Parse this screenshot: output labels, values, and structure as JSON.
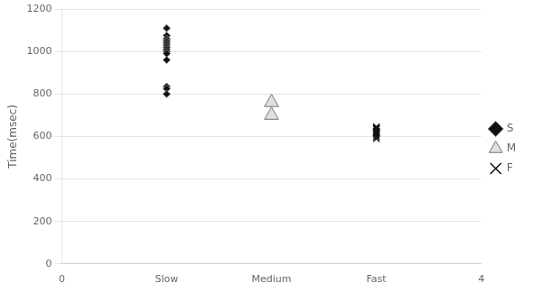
{
  "chart_data": {
    "type": "scatter",
    "y_label": "Time(msec)",
    "xlim": [
      0,
      4
    ],
    "xticks": [
      0,
      {
        "value": 1,
        "label": "Slow"
      },
      {
        "value": 2,
        "label": "Medium"
      },
      {
        "value": 3,
        "label": "Fast"
      },
      4
    ],
    "ylim": [
      0,
      1200
    ],
    "yticks": [
      0,
      200,
      400,
      600,
      800,
      1000,
      1200
    ],
    "grid": "y",
    "legend": "right",
    "series": [
      {
        "name": "S",
        "color": "#111111",
        "marker": "diamond",
        "x": [
          1,
          1,
          1,
          1,
          1,
          1,
          1,
          1,
          1,
          1,
          1,
          1,
          1,
          1
        ],
        "values": [
          1110,
          1075,
          1060,
          1050,
          1040,
          1030,
          1020,
          1010,
          1000,
          990,
          960,
          835,
          825,
          800
        ]
      },
      {
        "name": "M",
        "color": "#e0e0e0",
        "marker": "triangle",
        "x": [
          2,
          2
        ],
        "values": [
          760,
          700
        ]
      },
      {
        "name": "F",
        "color": "#111111",
        "marker": "x",
        "x": [
          3,
          3,
          3,
          3,
          3,
          3,
          3,
          3,
          3
        ],
        "values": [
          645,
          640,
          635,
          625,
          620,
          615,
          610,
          600,
          590
        ]
      }
    ]
  }
}
